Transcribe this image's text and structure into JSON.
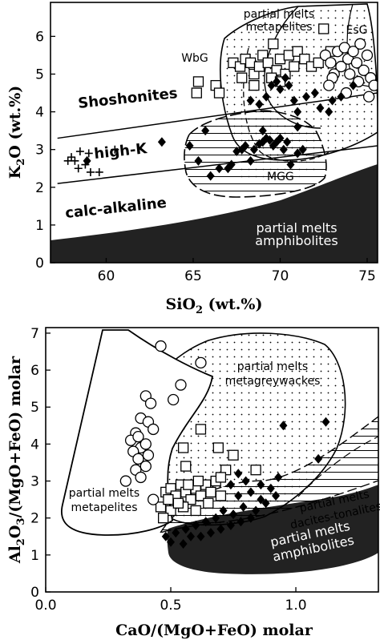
{
  "chart_data": [
    {
      "type": "scatter",
      "xlabel": "SiO2 (wt.%)",
      "xlabel_main": "SiO",
      "xlabel_sub": "2",
      "xlabel_tail": " (wt.%)",
      "ylabel": "K2O (wt.%)",
      "ylabel_main": "K",
      "ylabel_sub": "2",
      "ylabel_tail": "O (wt.%)",
      "xlim": [
        56.8,
        75.6
      ],
      "ylim": [
        0,
        6.9
      ],
      "xticks": [
        60,
        65,
        70,
        75
      ],
      "yticks": [
        0,
        1,
        2,
        3,
        4,
        5,
        6
      ],
      "grid": false,
      "series_labels": {
        "shoshonites": "Shoshonites",
        "highk": "high-K",
        "calc": "calc-alkaline",
        "pm_metapelites_1": "partial melts",
        "pm_metapelites_2": "metapelites",
        "pm_amph_1": "partial melts",
        "pm_amph_2": "amphibolites",
        "wbg": "WbG",
        "esg": "EsG",
        "mgg": "MGG"
      },
      "boundaries": [
        {
          "name": "shoshonite / high-K",
          "x": [
            57.2,
            75.6
          ],
          "y": [
            3.3,
            4.5
          ]
        },
        {
          "name": "high-K / calc-alkaline",
          "x": [
            57.2,
            75.6
          ],
          "y": [
            2.1,
            3.1
          ]
        }
      ],
      "crosses": [
        {
          "x": 57.8,
          "y": 2.7
        },
        {
          "x": 58.0,
          "y": 2.8
        },
        {
          "x": 58.2,
          "y": 2.7
        },
        {
          "x": 58.4,
          "y": 2.5
        },
        {
          "x": 58.8,
          "y": 2.6
        },
        {
          "x": 59.0,
          "y": 2.9
        },
        {
          "x": 59.1,
          "y": 2.4
        },
        {
          "x": 59.6,
          "y": 2.4
        },
        {
          "x": 60.5,
          "y": 3.0
        },
        {
          "x": 58.5,
          "y": 2.95
        }
      ],
      "diamonds": [
        {
          "x": 58.9,
          "y": 2.7
        },
        {
          "x": 63.2,
          "y": 3.2
        },
        {
          "x": 64.8,
          "y": 3.1
        },
        {
          "x": 65.3,
          "y": 2.7
        },
        {
          "x": 65.7,
          "y": 3.5
        },
        {
          "x": 66.0,
          "y": 2.3
        },
        {
          "x": 66.5,
          "y": 2.5
        },
        {
          "x": 67.0,
          "y": 2.5
        },
        {
          "x": 67.2,
          "y": 2.6
        },
        {
          "x": 67.5,
          "y": 2.95
        },
        {
          "x": 67.8,
          "y": 3.0
        },
        {
          "x": 68.0,
          "y": 3.1
        },
        {
          "x": 68.3,
          "y": 2.7
        },
        {
          "x": 68.5,
          "y": 3.0
        },
        {
          "x": 68.8,
          "y": 3.15
        },
        {
          "x": 69.0,
          "y": 3.2
        },
        {
          "x": 69.2,
          "y": 3.3
        },
        {
          "x": 69.4,
          "y": 3.25
        },
        {
          "x": 69.6,
          "y": 3.1
        },
        {
          "x": 69.8,
          "y": 3.2
        },
        {
          "x": 70.0,
          "y": 3.3
        },
        {
          "x": 70.2,
          "y": 3.0
        },
        {
          "x": 70.4,
          "y": 3.2
        },
        {
          "x": 70.6,
          "y": 2.6
        },
        {
          "x": 71.0,
          "y": 2.9
        },
        {
          "x": 71.3,
          "y": 3.0
        },
        {
          "x": 68.3,
          "y": 4.3
        },
        {
          "x": 68.8,
          "y": 4.2
        },
        {
          "x": 69.2,
          "y": 4.4
        },
        {
          "x": 69.5,
          "y": 4.7
        },
        {
          "x": 69.8,
          "y": 4.8
        },
        {
          "x": 70.0,
          "y": 4.6
        },
        {
          "x": 70.3,
          "y": 4.9
        },
        {
          "x": 70.5,
          "y": 4.7
        },
        {
          "x": 70.8,
          "y": 4.3
        },
        {
          "x": 71.0,
          "y": 4.0
        },
        {
          "x": 71.5,
          "y": 4.4
        },
        {
          "x": 72.0,
          "y": 4.5
        },
        {
          "x": 72.3,
          "y": 4.1
        },
        {
          "x": 72.8,
          "y": 4.0
        },
        {
          "x": 73.0,
          "y": 4.3
        },
        {
          "x": 73.5,
          "y": 4.4
        },
        {
          "x": 74.2,
          "y": 4.7
        },
        {
          "x": 71.0,
          "y": 3.6
        },
        {
          "x": 69.0,
          "y": 3.5
        }
      ],
      "squares": [
        {
          "x": 65.3,
          "y": 4.8
        },
        {
          "x": 65.2,
          "y": 4.5
        },
        {
          "x": 66.3,
          "y": 4.7
        },
        {
          "x": 66.5,
          "y": 4.5
        },
        {
          "x": 67.3,
          "y": 5.3
        },
        {
          "x": 67.7,
          "y": 5.2
        },
        {
          "x": 68.0,
          "y": 5.4
        },
        {
          "x": 68.3,
          "y": 5.3
        },
        {
          "x": 68.5,
          "y": 5.0
        },
        {
          "x": 68.8,
          "y": 5.2
        },
        {
          "x": 69.0,
          "y": 5.5
        },
        {
          "x": 69.3,
          "y": 5.3
        },
        {
          "x": 69.6,
          "y": 5.8
        },
        {
          "x": 69.8,
          "y": 5.1
        },
        {
          "x": 70.0,
          "y": 5.4
        },
        {
          "x": 70.3,
          "y": 5.0
        },
        {
          "x": 70.5,
          "y": 5.5
        },
        {
          "x": 70.8,
          "y": 5.2
        },
        {
          "x": 71.0,
          "y": 5.6
        },
        {
          "x": 71.4,
          "y": 5.4
        },
        {
          "x": 71.8,
          "y": 5.2
        },
        {
          "x": 72.2,
          "y": 5.3
        },
        {
          "x": 72.5,
          "y": 6.2
        },
        {
          "x": 72.9,
          "y": 5.6
        },
        {
          "x": 67.8,
          "y": 4.9
        },
        {
          "x": 68.5,
          "y": 4.7
        },
        {
          "x": 69.5,
          "y": 4.9
        },
        {
          "x": 70.0,
          "y": 4.8
        }
      ],
      "circles": [
        {
          "x": 72.6,
          "y": 5.5
        },
        {
          "x": 72.9,
          "y": 5.3
        },
        {
          "x": 73.1,
          "y": 5.0
        },
        {
          "x": 73.3,
          "y": 5.6
        },
        {
          "x": 73.5,
          "y": 5.2
        },
        {
          "x": 73.7,
          "y": 5.7
        },
        {
          "x": 73.9,
          "y": 5.4
        },
        {
          "x": 74.0,
          "y": 5.0
        },
        {
          "x": 74.2,
          "y": 5.6
        },
        {
          "x": 74.4,
          "y": 5.3
        },
        {
          "x": 74.6,
          "y": 5.8
        },
        {
          "x": 74.8,
          "y": 5.1
        },
        {
          "x": 75.0,
          "y": 5.5
        },
        {
          "x": 75.2,
          "y": 4.9
        },
        {
          "x": 75.4,
          "y": 4.7
        },
        {
          "x": 74.5,
          "y": 4.8
        },
        {
          "x": 73.0,
          "y": 4.9
        },
        {
          "x": 73.8,
          "y": 4.5
        },
        {
          "x": 75.1,
          "y": 4.4
        },
        {
          "x": 72.8,
          "y": 4.7
        }
      ]
    },
    {
      "type": "scatter",
      "xlabel": "CaO/(MgO+FeO) molar",
      "ylabel": "Al2O3/(MgO+FeO) molar",
      "ylabel_main": "Al",
      "ylabel_sub1": "2",
      "ylabel_mid": "O",
      "ylabel_sub2": "3",
      "ylabel_tail": "/(MgO+FeO) molar",
      "xlim": [
        0.0,
        1.33
      ],
      "ylim": [
        0,
        7.15
      ],
      "xticks": [
        0.0,
        0.5,
        1.0
      ],
      "xticklabels": [
        "0.0",
        "0.5",
        "1.0"
      ],
      "yticks": [
        0,
        1,
        2,
        3,
        4,
        5,
        6,
        7
      ],
      "grid": false,
      "series_labels": {
        "pm_metagrey_1": "partial melts",
        "pm_metagrey_2": "metagreywackes",
        "pm_metapelites_1": "partial melts",
        "pm_metapelites_2": "metapelites",
        "pm_dacites_1": "partial melts",
        "pm_dacites_2": "dacites-tonalites",
        "pm_amph_1": "partial melts",
        "pm_amph_2": "amphibolites"
      },
      "circles": [
        {
          "x": 0.46,
          "y": 6.65
        },
        {
          "x": 0.62,
          "y": 6.2
        },
        {
          "x": 0.54,
          "y": 5.6
        },
        {
          "x": 0.51,
          "y": 5.2
        },
        {
          "x": 0.4,
          "y": 5.3
        },
        {
          "x": 0.42,
          "y": 5.1
        },
        {
          "x": 0.38,
          "y": 4.7
        },
        {
          "x": 0.41,
          "y": 4.6
        },
        {
          "x": 0.36,
          "y": 4.3
        },
        {
          "x": 0.34,
          "y": 4.1
        },
        {
          "x": 0.38,
          "y": 3.9
        },
        {
          "x": 0.35,
          "y": 3.8
        },
        {
          "x": 0.37,
          "y": 3.6
        },
        {
          "x": 0.4,
          "y": 3.4
        },
        {
          "x": 0.36,
          "y": 3.3
        },
        {
          "x": 0.38,
          "y": 3.1
        },
        {
          "x": 0.32,
          "y": 3.0
        },
        {
          "x": 0.41,
          "y": 3.7
        },
        {
          "x": 0.4,
          "y": 4.0
        },
        {
          "x": 0.37,
          "y": 4.2
        },
        {
          "x": 0.43,
          "y": 4.4
        },
        {
          "x": 0.43,
          "y": 2.5
        }
      ],
      "squares": [
        {
          "x": 0.62,
          "y": 4.4
        },
        {
          "x": 0.69,
          "y": 3.9
        },
        {
          "x": 0.55,
          "y": 3.9
        },
        {
          "x": 0.56,
          "y": 3.4
        },
        {
          "x": 0.75,
          "y": 3.7
        },
        {
          "x": 0.72,
          "y": 3.3
        },
        {
          "x": 0.84,
          "y": 3.3
        },
        {
          "x": 0.48,
          "y": 2.7
        },
        {
          "x": 0.5,
          "y": 2.8
        },
        {
          "x": 0.52,
          "y": 2.6
        },
        {
          "x": 0.54,
          "y": 2.9
        },
        {
          "x": 0.56,
          "y": 2.7
        },
        {
          "x": 0.58,
          "y": 2.5
        },
        {
          "x": 0.6,
          "y": 2.8
        },
        {
          "x": 0.62,
          "y": 2.6
        },
        {
          "x": 0.64,
          "y": 2.9
        },
        {
          "x": 0.66,
          "y": 2.7
        },
        {
          "x": 0.68,
          "y": 3.0
        },
        {
          "x": 0.7,
          "y": 3.1
        },
        {
          "x": 0.46,
          "y": 2.3
        },
        {
          "x": 0.5,
          "y": 2.2
        },
        {
          "x": 0.55,
          "y": 2.3
        },
        {
          "x": 0.6,
          "y": 2.2
        },
        {
          "x": 0.65,
          "y": 2.4
        },
        {
          "x": 0.7,
          "y": 2.6
        },
        {
          "x": 0.49,
          "y": 2.5
        },
        {
          "x": 0.53,
          "y": 2.4
        },
        {
          "x": 0.57,
          "y": 2.9
        },
        {
          "x": 0.61,
          "y": 3.0
        },
        {
          "x": 0.47,
          "y": 2.0
        }
      ],
      "diamonds": [
        {
          "x": 0.95,
          "y": 4.5
        },
        {
          "x": 1.12,
          "y": 4.6
        },
        {
          "x": 1.09,
          "y": 3.6
        },
        {
          "x": 0.8,
          "y": 3.0
        },
        {
          "x": 0.74,
          "y": 2.9
        },
        {
          "x": 0.77,
          "y": 2.6
        },
        {
          "x": 0.82,
          "y": 2.7
        },
        {
          "x": 0.86,
          "y": 2.9
        },
        {
          "x": 0.9,
          "y": 2.8
        },
        {
          "x": 0.92,
          "y": 2.6
        },
        {
          "x": 0.88,
          "y": 2.4
        },
        {
          "x": 0.84,
          "y": 2.2
        },
        {
          "x": 0.79,
          "y": 2.3
        },
        {
          "x": 0.75,
          "y": 2.1
        },
        {
          "x": 0.71,
          "y": 2.2
        },
        {
          "x": 0.68,
          "y": 2.0
        },
        {
          "x": 0.64,
          "y": 1.9
        },
        {
          "x": 0.6,
          "y": 1.8
        },
        {
          "x": 0.56,
          "y": 1.7
        },
        {
          "x": 0.52,
          "y": 1.6
        },
        {
          "x": 0.48,
          "y": 1.5
        },
        {
          "x": 0.62,
          "y": 1.5
        },
        {
          "x": 0.66,
          "y": 1.6
        },
        {
          "x": 0.7,
          "y": 1.7
        },
        {
          "x": 0.74,
          "y": 1.8
        },
        {
          "x": 0.78,
          "y": 1.9
        },
        {
          "x": 0.82,
          "y": 2.0
        },
        {
          "x": 0.55,
          "y": 1.3
        },
        {
          "x": 0.5,
          "y": 1.35
        },
        {
          "x": 0.58,
          "y": 1.5
        },
        {
          "x": 0.86,
          "y": 2.5
        },
        {
          "x": 0.93,
          "y": 3.1
        },
        {
          "x": 0.77,
          "y": 3.2
        }
      ]
    }
  ]
}
